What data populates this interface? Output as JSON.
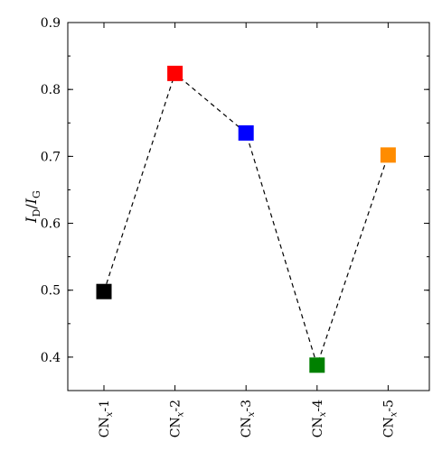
{
  "chart_data": {
    "type": "line",
    "categories": [
      {
        "main": "CN",
        "sub": "x",
        "suffix": "-1"
      },
      {
        "main": "CN",
        "sub": "x",
        "suffix": "-2"
      },
      {
        "main": "CN",
        "sub": "x",
        "suffix": "-3"
      },
      {
        "main": "CN",
        "sub": "x",
        "suffix": "-4"
      },
      {
        "main": "CN",
        "sub": "x",
        "suffix": "-5"
      }
    ],
    "values": [
      0.498,
      0.824,
      0.735,
      0.388,
      0.702
    ],
    "point_colors": [
      "#000000",
      "#ff0000",
      "#0000ff",
      "#008000",
      "#ff8c00"
    ],
    "line_style": "dashed",
    "line_color": "#000000",
    "marker": "square",
    "ylabel": {
      "main1": "I",
      "sub1": "D",
      "sep": "/",
      "main2": "I",
      "sub2": "G"
    },
    "xlabel": "",
    "title": "",
    "ylim": [
      0.35,
      0.9
    ],
    "yticks": [
      "0.4",
      "0.5",
      "0.6",
      "0.7",
      "0.8",
      "0.9"
    ],
    "grid": false,
    "legend": "none"
  }
}
